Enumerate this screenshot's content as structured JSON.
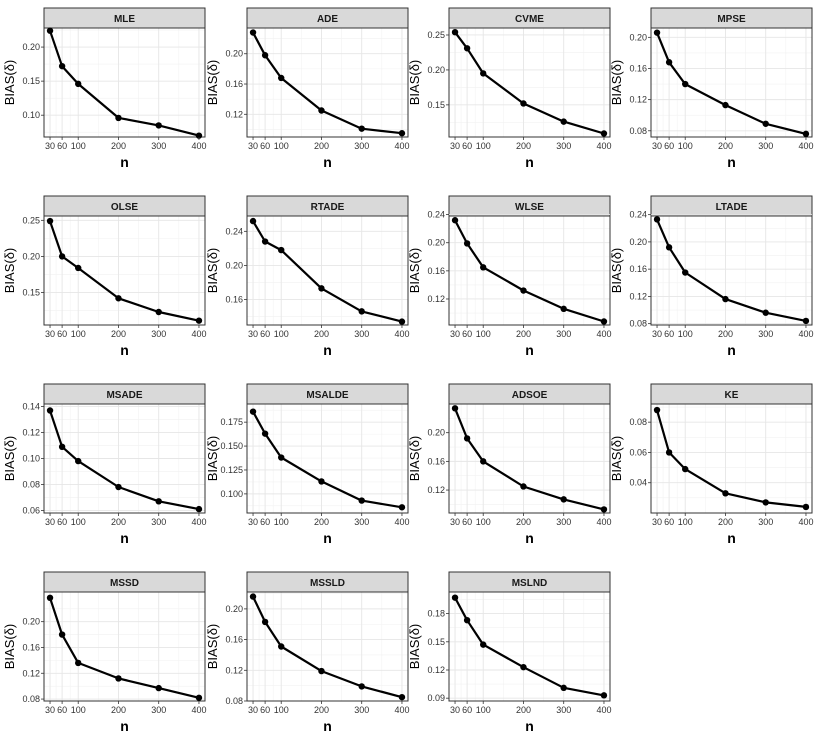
{
  "figure": {
    "xlabel": "n",
    "ylabel": "BIAS(δ)"
  },
  "colors": {
    "strip_fill": "#d9d9d9",
    "panel_border": "#333333",
    "grid_major": "#e6e6e6",
    "grid_minor": "#f2f2f2",
    "line": "#000000"
  },
  "chart_data": [
    {
      "type": "line",
      "title": "MLE",
      "xlabel": "n",
      "ylabel": "BIAS(δ)",
      "x": [
        30,
        60,
        100,
        200,
        300,
        400
      ],
      "y": [
        0.224,
        0.172,
        0.146,
        0.096,
        0.085,
        0.07
      ],
      "ylim": [
        0.068,
        0.228
      ],
      "xticks": [
        30,
        60,
        100,
        200,
        300,
        400
      ],
      "yticks": [
        0.1,
        0.15,
        0.2
      ]
    },
    {
      "type": "line",
      "title": "ADE",
      "xlabel": "n",
      "ylabel": "BIAS(δ)",
      "x": [
        30,
        60,
        100,
        200,
        300,
        400
      ],
      "y": [
        0.228,
        0.198,
        0.168,
        0.125,
        0.101,
        0.095
      ],
      "ylim": [
        0.09,
        0.234
      ],
      "xticks": [
        30,
        60,
        100,
        200,
        300,
        400
      ],
      "yticks": [
        0.12,
        0.16,
        0.2
      ]
    },
    {
      "type": "line",
      "title": "CVME",
      "xlabel": "n",
      "ylabel": "BIAS(δ)",
      "x": [
        30,
        60,
        100,
        200,
        300,
        400
      ],
      "y": [
        0.254,
        0.231,
        0.195,
        0.152,
        0.126,
        0.109
      ],
      "ylim": [
        0.104,
        0.26
      ],
      "xticks": [
        30,
        60,
        100,
        200,
        300,
        400
      ],
      "yticks": [
        0.15,
        0.2,
        0.25
      ]
    },
    {
      "type": "line",
      "title": "MPSE",
      "xlabel": "n",
      "ylabel": "BIAS(δ)",
      "x": [
        30,
        60,
        100,
        200,
        300,
        400
      ],
      "y": [
        0.206,
        0.168,
        0.14,
        0.113,
        0.089,
        0.076
      ],
      "ylim": [
        0.072,
        0.212
      ],
      "xticks": [
        30,
        60,
        100,
        200,
        300,
        400
      ],
      "yticks": [
        0.08,
        0.12,
        0.16,
        0.2
      ]
    },
    {
      "type": "line",
      "title": "OLSE",
      "xlabel": "n",
      "ylabel": "BIAS(δ)",
      "x": [
        30,
        60,
        100,
        200,
        300,
        400
      ],
      "y": [
        0.249,
        0.2,
        0.184,
        0.142,
        0.123,
        0.111
      ],
      "ylim": [
        0.105,
        0.256
      ],
      "xticks": [
        30,
        60,
        100,
        200,
        300,
        400
      ],
      "yticks": [
        0.15,
        0.2,
        0.25
      ]
    },
    {
      "type": "line",
      "title": "RTADE",
      "xlabel": "n",
      "ylabel": "BIAS(δ)",
      "x": [
        30,
        60,
        100,
        200,
        300,
        400
      ],
      "y": [
        0.252,
        0.228,
        0.218,
        0.173,
        0.146,
        0.134
      ],
      "ylim": [
        0.13,
        0.258
      ],
      "xticks": [
        30,
        60,
        100,
        200,
        300,
        400
      ],
      "yticks": [
        0.16,
        0.2,
        0.24
      ]
    },
    {
      "type": "line",
      "title": "WLSE",
      "xlabel": "n",
      "ylabel": "BIAS(δ)",
      "x": [
        30,
        60,
        100,
        200,
        300,
        400
      ],
      "y": [
        0.232,
        0.199,
        0.165,
        0.132,
        0.106,
        0.088
      ],
      "ylim": [
        0.083,
        0.238
      ],
      "xticks": [
        30,
        60,
        100,
        200,
        300,
        400
      ],
      "yticks": [
        0.12,
        0.16,
        0.2,
        0.24
      ]
    },
    {
      "type": "line",
      "title": "LTADE",
      "xlabel": "n",
      "ylabel": "BIAS(δ)",
      "x": [
        30,
        60,
        100,
        200,
        300,
        400
      ],
      "y": [
        0.233,
        0.192,
        0.155,
        0.116,
        0.096,
        0.084
      ],
      "ylim": [
        0.078,
        0.238
      ],
      "xticks": [
        30,
        60,
        100,
        200,
        300,
        400
      ],
      "yticks": [
        0.08,
        0.12,
        0.16,
        0.2,
        0.24
      ]
    },
    {
      "type": "line",
      "title": "MSADE",
      "xlabel": "n",
      "ylabel": "BIAS(δ)",
      "x": [
        30,
        60,
        100,
        200,
        300,
        400
      ],
      "y": [
        0.137,
        0.109,
        0.098,
        0.078,
        0.067,
        0.061
      ],
      "ylim": [
        0.058,
        0.142
      ],
      "xticks": [
        30,
        60,
        100,
        200,
        300,
        400
      ],
      "yticks": [
        0.06,
        0.08,
        0.1,
        0.12,
        0.14
      ]
    },
    {
      "type": "line",
      "title": "MSALDE",
      "xlabel": "n",
      "ylabel": "BIAS(δ)",
      "x": [
        30,
        60,
        100,
        200,
        300,
        400
      ],
      "y": [
        0.186,
        0.163,
        0.138,
        0.113,
        0.093,
        0.086
      ],
      "ylim": [
        0.08,
        0.194
      ],
      "xticks": [
        30,
        60,
        100,
        200,
        300,
        400
      ],
      "yticks": [
        0.1,
        0.125,
        0.15,
        0.175
      ]
    },
    {
      "type": "line",
      "title": "ADSOE",
      "xlabel": "n",
      "ylabel": "BIAS(δ)",
      "x": [
        30,
        60,
        100,
        200,
        300,
        400
      ],
      "y": [
        0.234,
        0.192,
        0.16,
        0.125,
        0.107,
        0.093
      ],
      "ylim": [
        0.088,
        0.24
      ],
      "xticks": [
        30,
        60,
        100,
        200,
        300,
        400
      ],
      "yticks": [
        0.12,
        0.16,
        0.2
      ]
    },
    {
      "type": "line",
      "title": "KE",
      "xlabel": "n",
      "ylabel": "BIAS(δ)",
      "x": [
        30,
        60,
        100,
        200,
        300,
        400
      ],
      "y": [
        0.088,
        0.06,
        0.049,
        0.033,
        0.027,
        0.024
      ],
      "ylim": [
        0.02,
        0.092
      ],
      "xticks": [
        30,
        60,
        100,
        200,
        300,
        400
      ],
      "yticks": [
        0.04,
        0.06,
        0.08
      ]
    },
    {
      "type": "line",
      "title": "MSSD",
      "xlabel": "n",
      "ylabel": "BIAS(δ)",
      "x": [
        30,
        60,
        100,
        200,
        300,
        400
      ],
      "y": [
        0.237,
        0.18,
        0.136,
        0.112,
        0.097,
        0.082
      ],
      "ylim": [
        0.077,
        0.246
      ],
      "xticks": [
        30,
        60,
        100,
        200,
        300,
        400
      ],
      "yticks": [
        0.08,
        0.12,
        0.16,
        0.2
      ]
    },
    {
      "type": "line",
      "title": "MSSLD",
      "xlabel": "n",
      "ylabel": "BIAS(δ)",
      "x": [
        30,
        60,
        100,
        200,
        300,
        400
      ],
      "y": [
        0.216,
        0.183,
        0.151,
        0.119,
        0.099,
        0.085
      ],
      "ylim": [
        0.08,
        0.222
      ],
      "xticks": [
        30,
        60,
        100,
        200,
        300,
        400
      ],
      "yticks": [
        0.08,
        0.12,
        0.16,
        0.2
      ]
    },
    {
      "type": "line",
      "title": "MSLND",
      "xlabel": "n",
      "ylabel": "BIAS(δ)",
      "x": [
        30,
        60,
        100,
        200,
        300,
        400
      ],
      "y": [
        0.197,
        0.173,
        0.147,
        0.123,
        0.101,
        0.093
      ],
      "ylim": [
        0.087,
        0.203
      ],
      "xticks": [
        30,
        60,
        100,
        200,
        300,
        400
      ],
      "yticks": [
        0.09,
        0.12,
        0.15,
        0.18
      ]
    }
  ]
}
